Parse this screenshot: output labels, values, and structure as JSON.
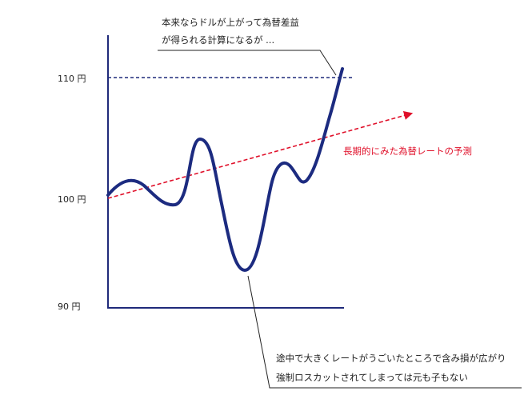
{
  "diagram": {
    "y_labels": {
      "top": "110 円",
      "mid": "100 円",
      "bottom": "90 円"
    },
    "callout_top": {
      "line1": "本来ならドルが上がって為替差益",
      "line2": "が得られる計算になるが ..."
    },
    "trend_label": "長期的にみた為替レートの予測",
    "callout_bottom": {
      "line1": "途中で大きくレートがうごいたところで含み損が広がり",
      "line2": "強制ロスカットされてしまっては元も子もない"
    },
    "colors": {
      "axis": "#1f2a7a",
      "curve": "#1c2b80",
      "dashed_110": "#1f2a7a",
      "trend": "#e0102a",
      "leader": "#222222"
    }
  }
}
